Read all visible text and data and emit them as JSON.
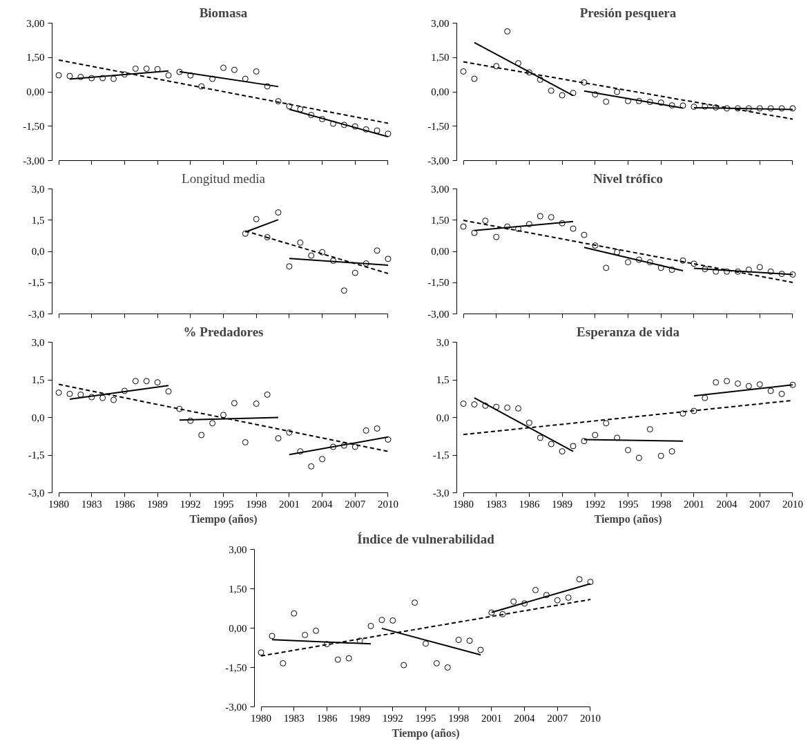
{
  "chart_data": [
    {
      "type": "scatter",
      "title": "Biomasa",
      "tick_labels": "y",
      "xlim": [
        1980,
        2010
      ],
      "xticks": [
        1980,
        1983,
        1986,
        1989,
        1992,
        1995,
        1998,
        2001,
        2004,
        2007,
        2010
      ],
      "ylim": [
        -3,
        3
      ],
      "yticks": [
        {
          "value": -3,
          "label": "-3,00"
        },
        {
          "value": -1.5,
          "label": "-1,50"
        },
        {
          "value": 0,
          "label": "0,00"
        },
        {
          "value": 1.5,
          "label": "1,50"
        },
        {
          "value": 3,
          "label": "3,00"
        }
      ],
      "x": [
        1980,
        1981,
        1982,
        1983,
        1984,
        1985,
        1986,
        1987,
        1988,
        1989,
        1990,
        1991,
        1992,
        1993,
        1994,
        1995,
        1996,
        1997,
        1998,
        1999,
        2000,
        2001,
        2002,
        2003,
        2004,
        2005,
        2006,
        2007,
        2008,
        2009,
        2010
      ],
      "series": [
        {
          "marker": "circle",
          "color": "#000000",
          "values": [
            0.72,
            0.69,
            0.65,
            0.6,
            0.6,
            0.57,
            0.76,
            1.01,
            1.01,
            0.99,
            0.72,
            0.87,
            0.72,
            0.24,
            0.57,
            1.05,
            0.96,
            0.57,
            0.89,
            0.24,
            -0.41,
            -0.63,
            -0.76,
            -1.01,
            -1.19,
            -1.39,
            -1.44,
            -1.51,
            -1.64,
            -1.69,
            -1.83
          ]
        },
        {
          "type": "line",
          "color": "#000000",
          "line_style": "solid",
          "x": [
            1981,
            1990
          ],
          "values": [
            0.56,
            0.91
          ]
        },
        {
          "type": "line",
          "color": "#000000",
          "line_style": "solid",
          "x": [
            1991,
            2000
          ],
          "values": [
            0.88,
            0.23
          ]
        },
        {
          "type": "line",
          "color": "#000000",
          "line_style": "solid",
          "x": [
            2001,
            2010
          ],
          "values": [
            -0.76,
            -1.96
          ]
        },
        {
          "type": "line",
          "color": "#000000",
          "line_style": "dashed",
          "x": [
            1980,
            2010
          ],
          "values": [
            1.39,
            -1.37
          ]
        }
      ]
    },
    {
      "type": "scatter",
      "title": "Presión pesquera",
      "tick_labels": "y",
      "xlim": [
        1980,
        2010
      ],
      "xticks": [
        1980,
        1983,
        1986,
        1989,
        1992,
        1995,
        1998,
        2001,
        2004,
        2007,
        2010
      ],
      "ylim": [
        -3,
        3
      ],
      "yticks": [
        {
          "value": -3,
          "label": "-3,00"
        },
        {
          "value": -1.5,
          "label": "-1,50"
        },
        {
          "value": 0,
          "label": "0,00"
        },
        {
          "value": 1.5,
          "label": "1,50"
        },
        {
          "value": 3,
          "label": "3,00"
        }
      ],
      "x": [
        1980,
        1981,
        1982,
        1983,
        1984,
        1985,
        1986,
        1987,
        1988,
        1989,
        1990,
        1991,
        1992,
        1993,
        1994,
        1995,
        1996,
        1997,
        1998,
        1999,
        2000,
        2001,
        2002,
        2003,
        2004,
        2005,
        2006,
        2007,
        2008,
        2009,
        2010
      ],
      "series": [
        {
          "marker": "circle",
          "color": "#000000",
          "values": [
            0.89,
            0.57,
            null,
            1.12,
            2.64,
            1.25,
            0.85,
            0.53,
            0.05,
            -0.15,
            -0.05,
            0.41,
            -0.11,
            -0.43,
            0.0,
            -0.4,
            -0.4,
            -0.44,
            -0.47,
            -0.59,
            -0.6,
            -0.65,
            -0.64,
            -0.68,
            -0.72,
            -0.72,
            -0.72,
            -0.72,
            -0.72,
            -0.72,
            -0.72
          ]
        },
        {
          "type": "line",
          "color": "#000000",
          "line_style": "solid",
          "x": [
            1981,
            1990
          ],
          "values": [
            2.15,
            -0.16
          ]
        },
        {
          "type": "line",
          "color": "#000000",
          "line_style": "solid",
          "x": [
            1991,
            2000
          ],
          "values": [
            0.04,
            -0.71
          ]
        },
        {
          "type": "line",
          "color": "#000000",
          "line_style": "solid",
          "x": [
            2001,
            2010
          ],
          "values": [
            -0.69,
            -0.77
          ]
        },
        {
          "type": "line",
          "color": "#000000",
          "line_style": "dashed",
          "x": [
            1980,
            2010
          ],
          "values": [
            1.31,
            -1.19
          ]
        }
      ]
    },
    {
      "type": "scatter",
      "title": "Longitud media",
      "tick_labels": "y",
      "xlim": [
        1980,
        2010
      ],
      "xticks": [
        1980,
        1983,
        1986,
        1989,
        1992,
        1995,
        1998,
        2001,
        2004,
        2007,
        2010
      ],
      "ylim": [
        -3,
        3
      ],
      "yticks": [
        {
          "value": -3,
          "label": "-3,0"
        },
        {
          "value": -1.5,
          "label": "-1,5"
        },
        {
          "value": 0,
          "label": "0,0"
        },
        {
          "value": 1.5,
          "label": "1,5"
        },
        {
          "value": 3,
          "label": "3,0"
        }
      ],
      "x": [
        1997,
        1998,
        1999,
        2000,
        2001,
        2002,
        2003,
        2004,
        2005,
        2006,
        2007,
        2008,
        2009,
        2010
      ],
      "series": [
        {
          "marker": "circle",
          "color": "#000000",
          "values": [
            0.85,
            1.55,
            0.68,
            1.87,
            -0.72,
            0.42,
            -0.2,
            -0.04,
            -0.45,
            -1.88,
            -1.03,
            -0.58,
            0.04,
            -0.36
          ]
        },
        {
          "type": "line",
          "color": "#000000",
          "line_style": "solid",
          "x": [
            1997,
            2000
          ],
          "values": [
            0.93,
            1.52
          ]
        },
        {
          "type": "line",
          "color": "#000000",
          "line_style": "solid",
          "x": [
            2001,
            2010
          ],
          "values": [
            -0.34,
            -0.66
          ]
        },
        {
          "type": "line",
          "color": "#000000",
          "line_style": "dashed",
          "x": [
            1997,
            2010
          ],
          "values": [
            0.98,
            -1.06
          ]
        }
      ]
    },
    {
      "type": "scatter",
      "title": "Nivel trófico",
      "tick_labels": "y",
      "xlim": [
        1980,
        2010
      ],
      "xticks": [
        1980,
        1983,
        1986,
        1989,
        1992,
        1995,
        1998,
        2001,
        2004,
        2007,
        2010
      ],
      "ylim": [
        -3,
        3
      ],
      "yticks": [
        {
          "value": -3,
          "label": "-3,00"
        },
        {
          "value": -1.5,
          "label": "-1,50"
        },
        {
          "value": 0,
          "label": "0,00"
        },
        {
          "value": 1.5,
          "label": "1,50"
        },
        {
          "value": 3,
          "label": "3,00"
        }
      ],
      "x": [
        1980,
        1981,
        1982,
        1983,
        1984,
        1985,
        1986,
        1987,
        1988,
        1989,
        1990,
        1991,
        1992,
        1993,
        1994,
        1995,
        1996,
        1997,
        1998,
        1999,
        2000,
        2001,
        2002,
        2003,
        2004,
        2005,
        2006,
        2007,
        2008,
        2009,
        2010
      ],
      "series": [
        {
          "marker": "circle",
          "color": "#000000",
          "values": [
            1.19,
            0.89,
            1.47,
            0.69,
            1.19,
            1.08,
            1.31,
            1.69,
            1.64,
            1.35,
            1.09,
            0.79,
            0.28,
            -0.79,
            -0.04,
            -0.52,
            -0.4,
            -0.52,
            -0.79,
            -0.88,
            -0.44,
            -0.59,
            -0.85,
            -0.97,
            -0.97,
            -0.97,
            -0.88,
            -0.76,
            -0.97,
            -1.08,
            -1.11
          ]
        },
        {
          "type": "line",
          "color": "#000000",
          "line_style": "solid",
          "x": [
            1981,
            1990
          ],
          "values": [
            1.0,
            1.43
          ]
        },
        {
          "type": "line",
          "color": "#000000",
          "line_style": "solid",
          "x": [
            1991,
            2000
          ],
          "values": [
            0.19,
            -0.93
          ]
        },
        {
          "type": "line",
          "color": "#000000",
          "line_style": "solid",
          "x": [
            2001,
            2010
          ],
          "values": [
            -0.81,
            -1.11
          ]
        },
        {
          "type": "line",
          "color": "#000000",
          "line_style": "dashed",
          "x": [
            1980,
            2010
          ],
          "values": [
            1.49,
            -1.49
          ]
        }
      ]
    },
    {
      "type": "scatter",
      "title": "% Predadores",
      "xlabel": "Tiempo (años)",
      "xlim": [
        1980,
        2010
      ],
      "xticks": [
        1980,
        1983,
        1986,
        1989,
        1992,
        1995,
        1998,
        2001,
        2004,
        2007,
        2010
      ],
      "ylim": [
        -3,
        3
      ],
      "yticks": [
        {
          "value": -3,
          "label": "-3,0"
        },
        {
          "value": -1.5,
          "label": "-1,5"
        },
        {
          "value": 0,
          "label": "0,0"
        },
        {
          "value": 1.5,
          "label": "1,5"
        },
        {
          "value": 3,
          "label": "3,0"
        }
      ],
      "x": [
        1980,
        1981,
        1982,
        1983,
        1984,
        1985,
        1986,
        1987,
        1988,
        1989,
        1990,
        1991,
        1992,
        1993,
        1994,
        1995,
        1996,
        1997,
        1998,
        1999,
        2000,
        2001,
        2002,
        2003,
        2004,
        2005,
        2006,
        2007,
        2008,
        2009,
        2010
      ],
      "series": [
        {
          "marker": "circle",
          "color": "#000000",
          "values": [
            0.99,
            0.94,
            0.91,
            0.81,
            0.78,
            0.7,
            1.06,
            1.45,
            1.45,
            1.4,
            1.04,
            0.34,
            -0.13,
            -0.7,
            -0.23,
            0.1,
            0.57,
            -0.99,
            0.55,
            0.91,
            -0.83,
            -0.6,
            -1.35,
            -1.95,
            -1.66,
            -1.17,
            -1.12,
            -1.17,
            -0.52,
            -0.44,
            -0.88
          ]
        },
        {
          "type": "line",
          "color": "#000000",
          "line_style": "solid",
          "x": [
            1981,
            1990
          ],
          "values": [
            0.73,
            1.27
          ]
        },
        {
          "type": "line",
          "color": "#000000",
          "line_style": "solid",
          "x": [
            1991,
            2000
          ],
          "values": [
            -0.1,
            0.0
          ]
        },
        {
          "type": "line",
          "color": "#000000",
          "line_style": "solid",
          "x": [
            2001,
            2010
          ],
          "values": [
            -1.48,
            -0.78
          ]
        },
        {
          "type": "line",
          "color": "#000000",
          "line_style": "dashed",
          "x": [
            1980,
            2010
          ],
          "values": [
            1.32,
            -1.35
          ]
        }
      ]
    },
    {
      "type": "scatter",
      "title": "Esperanza de vida",
      "xlabel": "Tiempo (años)",
      "xlim": [
        1980,
        2010
      ],
      "xticks": [
        1980,
        1983,
        1986,
        1989,
        1992,
        1995,
        1998,
        2001,
        2004,
        2007,
        2010
      ],
      "ylim": [
        -3,
        3
      ],
      "yticks": [
        {
          "value": -3,
          "label": "-3,0"
        },
        {
          "value": -1.5,
          "label": "-1,5"
        },
        {
          "value": 0,
          "label": "0,0"
        },
        {
          "value": 1.5,
          "label": "1,5"
        },
        {
          "value": 3,
          "label": "3,0"
        }
      ],
      "x": [
        1980,
        1981,
        1982,
        1983,
        1984,
        1985,
        1986,
        1987,
        1988,
        1989,
        1990,
        1991,
        1992,
        1993,
        1994,
        1995,
        1996,
        1997,
        1998,
        1999,
        2000,
        2001,
        2002,
        2003,
        2004,
        2005,
        2006,
        2007,
        2008,
        2009,
        2010
      ],
      "series": [
        {
          "marker": "circle",
          "color": "#000000",
          "values": [
            0.55,
            0.52,
            0.47,
            0.42,
            0.39,
            0.36,
            -0.21,
            -0.81,
            -1.06,
            -1.35,
            -1.14,
            -0.94,
            -0.7,
            -0.23,
            -0.81,
            -1.3,
            -1.61,
            -0.47,
            -1.53,
            -1.35,
            0.16,
            0.26,
            0.78,
            1.4,
            1.45,
            1.35,
            1.25,
            1.32,
            1.06,
            0.94,
            1.3
          ]
        },
        {
          "type": "line",
          "color": "#000000",
          "line_style": "solid",
          "x": [
            1981,
            1990
          ],
          "values": [
            0.78,
            -1.35
          ]
        },
        {
          "type": "line",
          "color": "#000000",
          "line_style": "solid",
          "x": [
            1991,
            2000
          ],
          "values": [
            -0.88,
            -0.94
          ]
        },
        {
          "type": "line",
          "color": "#000000",
          "line_style": "solid",
          "x": [
            2001,
            2010
          ],
          "values": [
            0.86,
            1.3
          ]
        },
        {
          "type": "line",
          "color": "#000000",
          "line_style": "dashed",
          "x": [
            1980,
            2010
          ],
          "values": [
            -0.68,
            0.68
          ]
        }
      ]
    },
    {
      "type": "scatter",
      "title": "Índice de vulnerabilidad",
      "xlabel": "Tiempo (años)",
      "xlim": [
        1980,
        2010
      ],
      "xticks": [
        1980,
        1983,
        1986,
        1989,
        1992,
        1995,
        1998,
        2001,
        2004,
        2007,
        2010
      ],
      "ylim": [
        -3,
        3
      ],
      "yticks": [
        {
          "value": -3,
          "label": "-3,00"
        },
        {
          "value": -1.5,
          "label": "-1,50"
        },
        {
          "value": 0,
          "label": "0,00"
        },
        {
          "value": 1.5,
          "label": "1,50"
        },
        {
          "value": 3,
          "label": "3,00"
        }
      ],
      "x": [
        1980,
        1981,
        1982,
        1983,
        1984,
        1985,
        1986,
        1987,
        1988,
        1989,
        1990,
        1991,
        1992,
        1993,
        1994,
        1995,
        1996,
        1997,
        1998,
        1999,
        2000,
        2001,
        2002,
        2003,
        2004,
        2005,
        2006,
        2007,
        2008,
        2009,
        2010
      ],
      "series": [
        {
          "marker": "circle",
          "color": "#000000",
          "values": [
            -0.93,
            -0.3,
            -1.34,
            0.56,
            -0.26,
            -0.1,
            -0.61,
            -1.2,
            -1.15,
            -0.48,
            0.08,
            0.31,
            0.29,
            -1.41,
            0.97,
            -0.59,
            -1.34,
            -1.5,
            -0.45,
            -0.48,
            -0.83,
            0.59,
            0.53,
            1.01,
            0.94,
            1.45,
            1.26,
            1.06,
            1.16,
            1.86,
            1.76
          ]
        },
        {
          "type": "line",
          "color": "#000000",
          "line_style": "solid",
          "x": [
            1981,
            1990
          ],
          "values": [
            -0.44,
            -0.6
          ]
        },
        {
          "type": "line",
          "color": "#000000",
          "line_style": "solid",
          "x": [
            1991,
            2000
          ],
          "values": [
            -0.01,
            -1.02
          ]
        },
        {
          "type": "line",
          "color": "#000000",
          "line_style": "solid",
          "x": [
            2001,
            2010
          ],
          "values": [
            0.6,
            1.69
          ]
        },
        {
          "type": "line",
          "color": "#000000",
          "line_style": "dashed",
          "x": [
            1980,
            2010
          ],
          "values": [
            -1.06,
            1.09
          ]
        }
      ]
    }
  ]
}
